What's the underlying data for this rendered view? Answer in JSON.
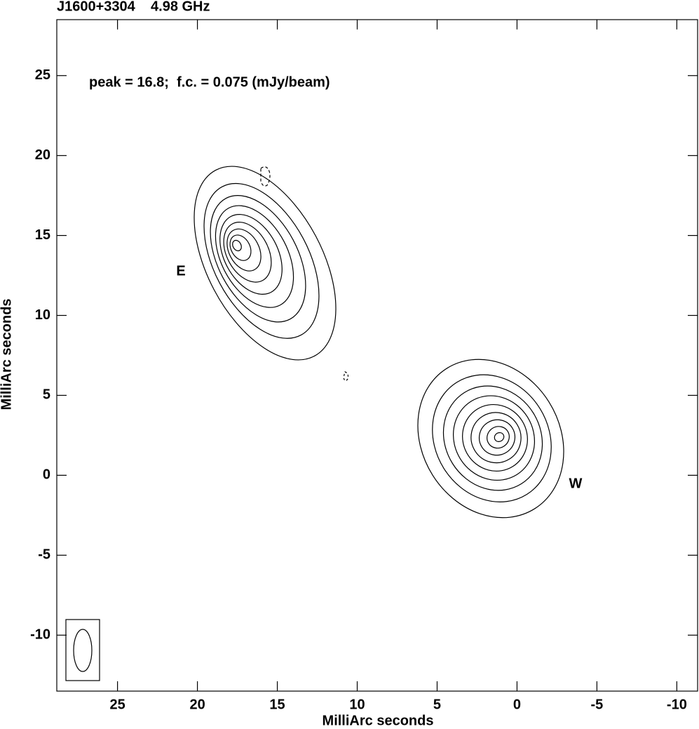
{
  "chart_data": {
    "type": "contour",
    "title": "J1600+3304    4.98 GHz",
    "annotation": "peak = 16.8;  f.c. = 0.075 (mJy/beam)",
    "labels": [
      "E",
      "W"
    ],
    "xlabel": "MilliArc seconds",
    "ylabel": "MilliArc seconds",
    "xlim": [
      28.8,
      -11.3
    ],
    "ylim": [
      -13.5,
      28.5
    ],
    "xticks": [
      25,
      20,
      15,
      10,
      5,
      0,
      -5,
      -10
    ],
    "yticks": [
      25,
      20,
      15,
      10,
      5,
      0,
      -5,
      -10
    ],
    "color": "#000000"
  }
}
